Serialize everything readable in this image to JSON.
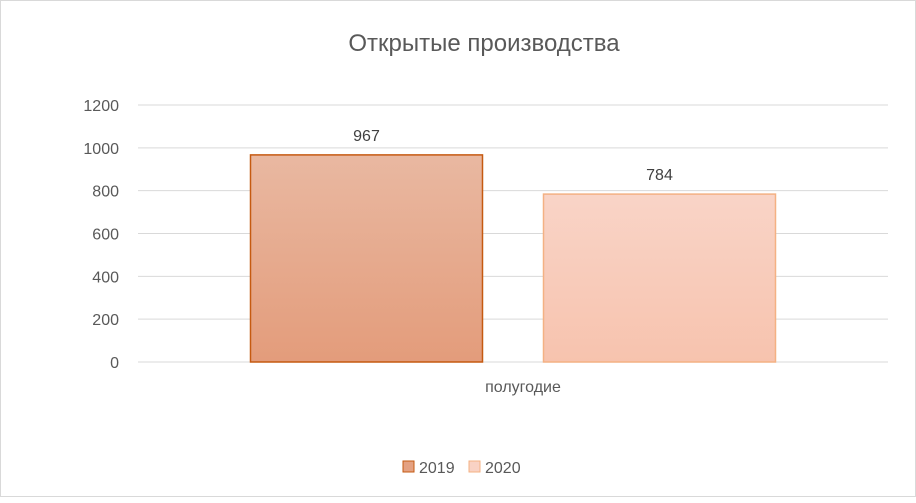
{
  "chart_data": {
    "type": "bar",
    "title": "Открытые  производства",
    "categories": [
      "полугодие"
    ],
    "series": [
      {
        "name": "2019",
        "values": [
          967
        ],
        "color": "#e4a182",
        "stroke": "#c55a11"
      },
      {
        "name": "2020",
        "values": [
          784
        ],
        "color": "#f9d2c4",
        "stroke": "#f4b183"
      }
    ],
    "y_ticks": [
      "0",
      "200",
      "400",
      "600",
      "800",
      "1000",
      "1200"
    ],
    "ylim": [
      0,
      1200
    ],
    "grid": true,
    "legend_position": "bottom",
    "xlabel": "",
    "ylabel": ""
  }
}
